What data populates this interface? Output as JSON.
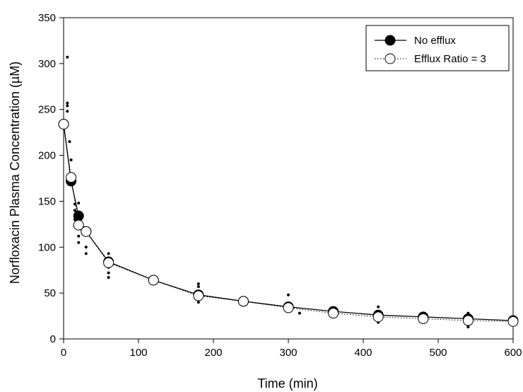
{
  "chart_data": {
    "type": "scatter",
    "title": "",
    "xlabel": "Time (min)",
    "ylabel": "Norfloxacin Plasma Concentration (µM)",
    "xlim": [
      0,
      600
    ],
    "ylim": [
      0,
      350
    ],
    "x_ticks": [
      "0",
      "100",
      "200",
      "300",
      "400",
      "500",
      "600"
    ],
    "y_ticks": [
      "0",
      "50",
      "100",
      "150",
      "200",
      "250",
      "300",
      "350"
    ],
    "grid": false,
    "legend_position": "top-right",
    "series": [
      {
        "name": "No efflux",
        "marker": "filled-circle",
        "line": "solid",
        "color": "#000000",
        "x": [
          0,
          10,
          20,
          30,
          60,
          120,
          180,
          240,
          300,
          360,
          420,
          480,
          540,
          600
        ],
        "y": [
          234,
          172,
          134,
          117,
          84,
          64,
          48,
          41,
          35,
          30,
          26,
          24,
          22,
          20
        ]
      },
      {
        "name": "Efflux Ratio = 3",
        "marker": "open-circle",
        "line": "dotted",
        "color": "#000000",
        "x": [
          0,
          10,
          20,
          30,
          60,
          120,
          180,
          240,
          300,
          360,
          420,
          480,
          540,
          600
        ],
        "y": [
          234,
          176,
          124,
          117,
          83,
          64,
          47,
          41,
          34,
          28,
          24,
          22,
          20,
          19
        ]
      }
    ],
    "observed_points": {
      "x": [
        5,
        5,
        5,
        5,
        8,
        10,
        10,
        10,
        15,
        15,
        15,
        20,
        20,
        20,
        30,
        30,
        60,
        60,
        60,
        60,
        60,
        180,
        180,
        180,
        180,
        300,
        300,
        300,
        315,
        360,
        420,
        420,
        420,
        540,
        540,
        540,
        540
      ],
      "y": [
        307,
        257,
        254,
        248,
        215,
        195,
        180,
        170,
        147,
        140,
        130,
        148,
        112,
        105,
        100,
        93,
        93,
        88,
        78,
        72,
        67,
        60,
        57,
        43,
        40,
        48,
        35,
        30,
        28,
        30,
        35,
        20,
        18,
        28,
        25,
        15,
        13
      ]
    }
  }
}
